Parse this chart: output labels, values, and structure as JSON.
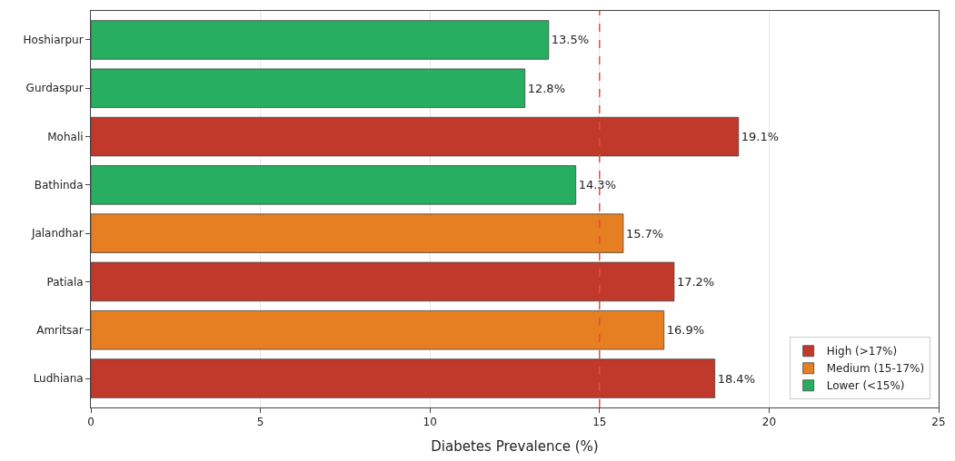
{
  "chart_data": {
    "type": "bar",
    "orientation": "horizontal",
    "xlabel": "Diabetes Prevalence (%)",
    "categories": [
      "Hoshiarpur",
      "Gurdaspur",
      "Mohali",
      "Bathinda",
      "Jalandhar",
      "Patiala",
      "Amritsar",
      "Ludhiana"
    ],
    "series": [
      {
        "name": "High (>17%)",
        "color": "#c0392b",
        "values": [
          null,
          null,
          19.1,
          null,
          null,
          17.2,
          null,
          18.4
        ],
        "value_labels": [
          null,
          null,
          "19.1%",
          null,
          null,
          "17.2%",
          null,
          "18.4%"
        ]
      },
      {
        "name": "Medium (15-17%)",
        "color": "#e67e22",
        "values": [
          null,
          null,
          null,
          null,
          15.7,
          null,
          16.9,
          null
        ],
        "value_labels": [
          null,
          null,
          null,
          null,
          "15.7%",
          null,
          "16.9%",
          null
        ]
      },
      {
        "name": "Lower (<15%)",
        "color": "#27ae60",
        "values": [
          13.5,
          12.8,
          null,
          14.3,
          null,
          null,
          null,
          null
        ],
        "value_labels": [
          "13.5%",
          "12.8%",
          null,
          "14.3%",
          null,
          null,
          null,
          null
        ]
      }
    ],
    "xlim": [
      0,
      25
    ],
    "xticks": [
      0,
      5,
      10,
      15,
      20,
      25
    ],
    "ref_lines": [
      {
        "axis": "x",
        "value": 15,
        "color": "#e74c3c",
        "line_style": "dashed"
      }
    ],
    "grid": "x",
    "legend": "bottom right"
  }
}
